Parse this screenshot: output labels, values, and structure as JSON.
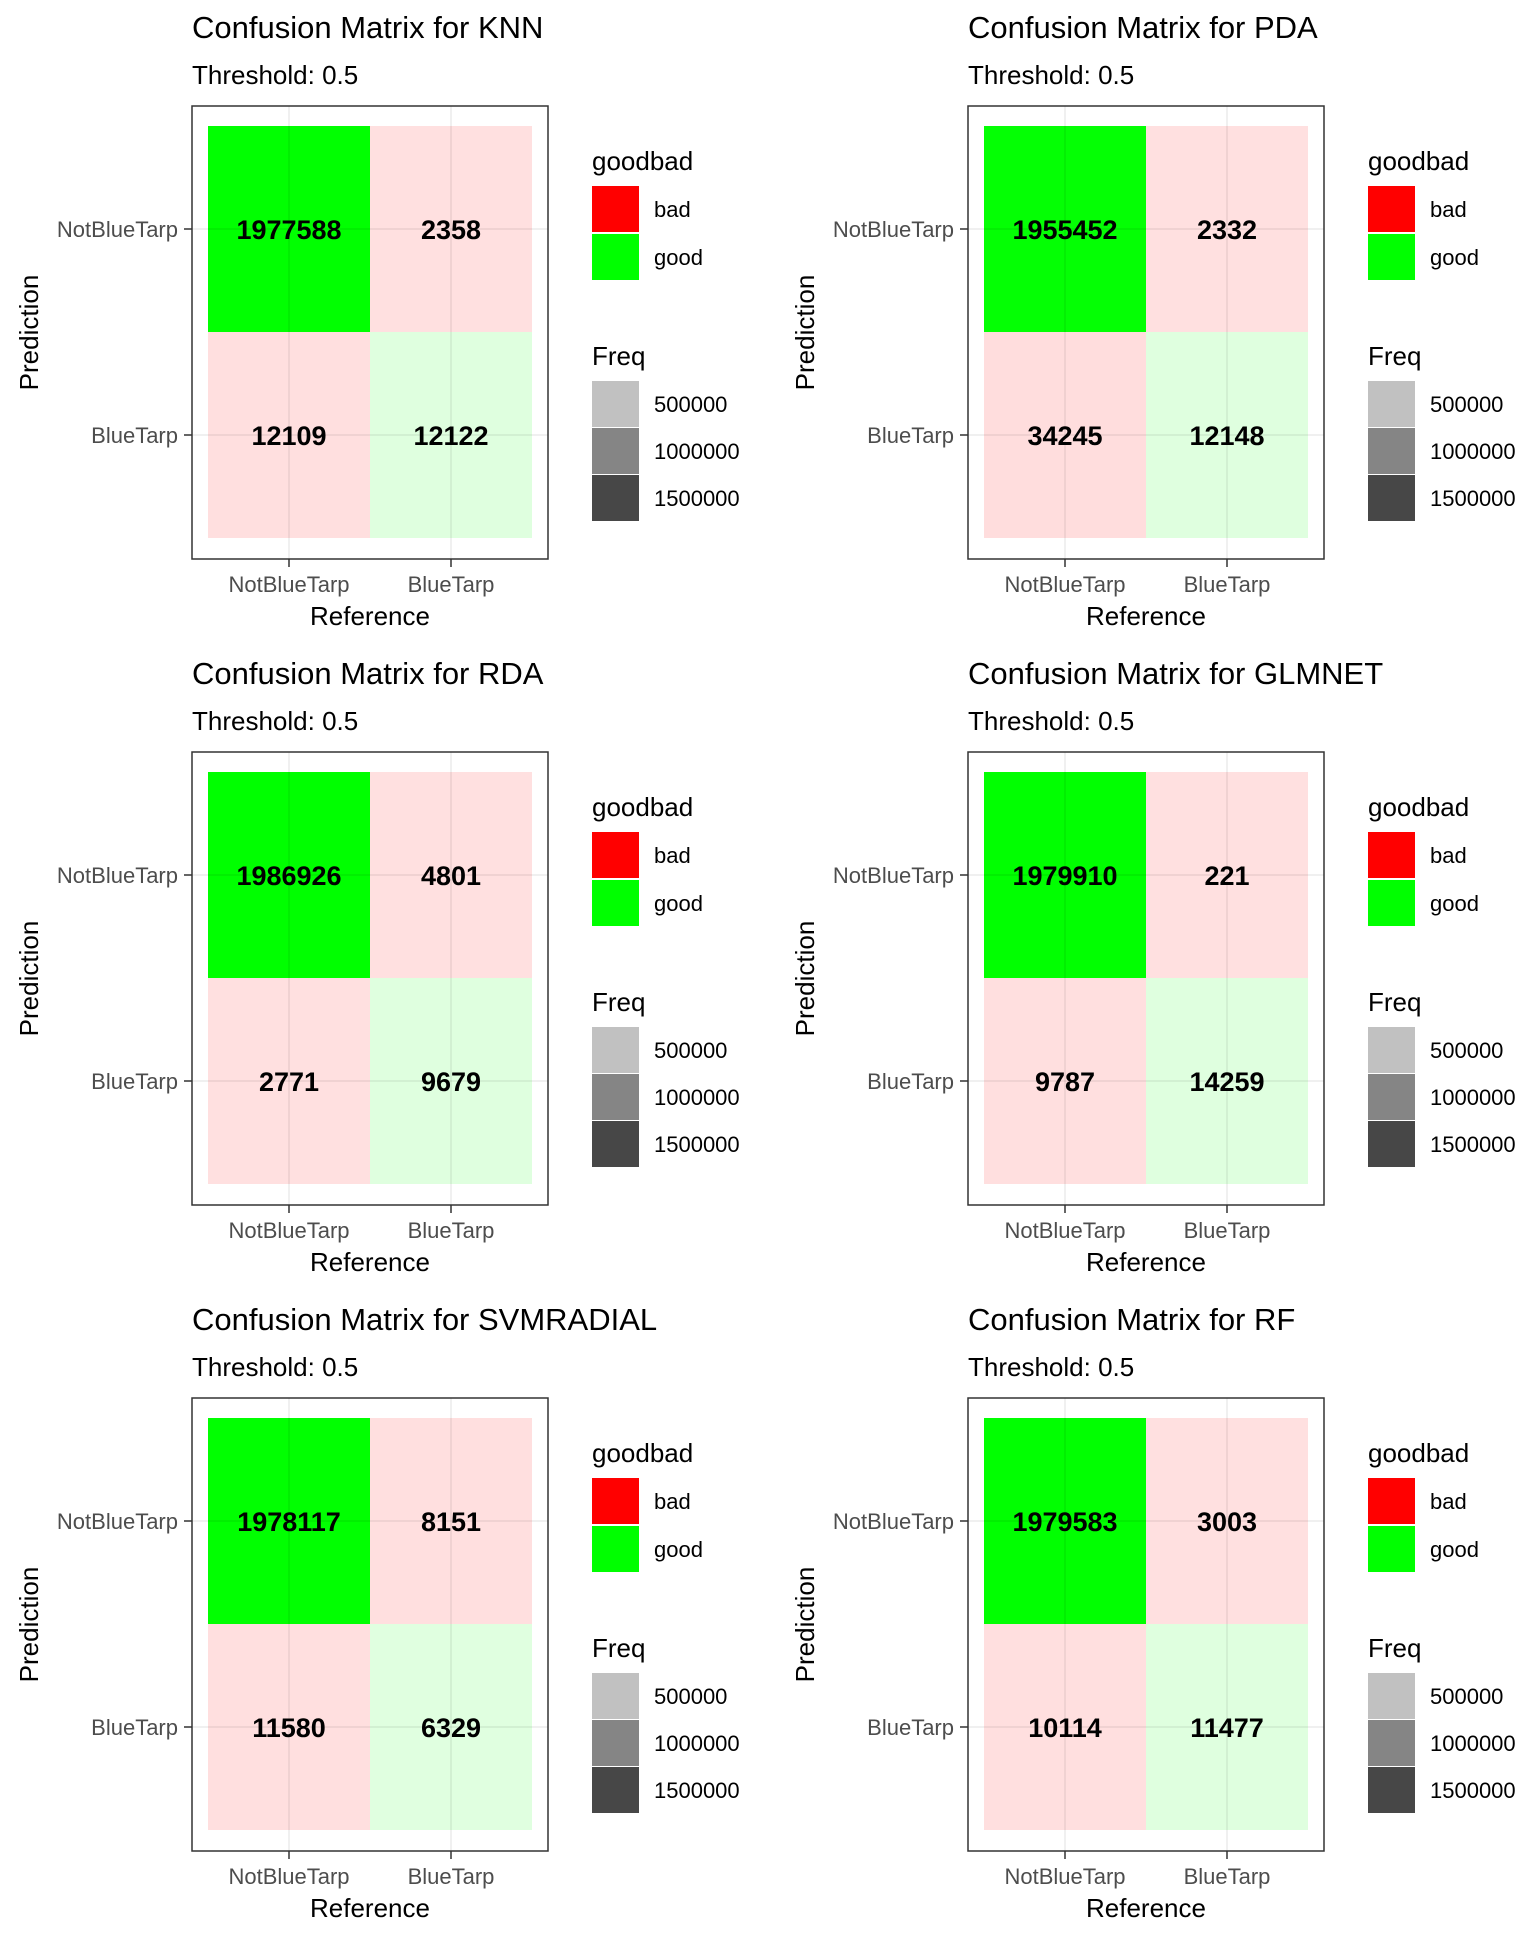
{
  "legend": {
    "fill_title": "goodbad",
    "fill_items": [
      {
        "label": "bad",
        "color": "#FF0000"
      },
      {
        "label": "good",
        "color": "#00FF00"
      }
    ],
    "alpha_title": "Freq",
    "alpha_items": [
      "500000",
      "1000000",
      "1500000"
    ]
  },
  "chart_data": [
    {
      "type": "heatmap",
      "title": "Confusion Matrix for KNN",
      "subtitle": "Threshold: 0.5",
      "xlabel": "Reference",
      "ylabel": "Prediction",
      "x_categories": [
        "NotBlueTarp",
        "BlueTarp"
      ],
      "y_categories": [
        "NotBlueTarp",
        "BlueTarp"
      ],
      "cells": [
        {
          "reference": "NotBlueTarp",
          "prediction": "NotBlueTarp",
          "freq": 1977588,
          "goodbad": "good"
        },
        {
          "reference": "BlueTarp",
          "prediction": "NotBlueTarp",
          "freq": 2358,
          "goodbad": "bad"
        },
        {
          "reference": "NotBlueTarp",
          "prediction": "BlueTarp",
          "freq": 12109,
          "goodbad": "bad"
        },
        {
          "reference": "BlueTarp",
          "prediction": "BlueTarp",
          "freq": 12122,
          "goodbad": "good"
        }
      ]
    },
    {
      "type": "heatmap",
      "title": "Confusion Matrix for PDA",
      "subtitle": "Threshold: 0.5",
      "xlabel": "Reference",
      "ylabel": "Prediction",
      "x_categories": [
        "NotBlueTarp",
        "BlueTarp"
      ],
      "y_categories": [
        "NotBlueTarp",
        "BlueTarp"
      ],
      "cells": [
        {
          "reference": "NotBlueTarp",
          "prediction": "NotBlueTarp",
          "freq": 1955452,
          "goodbad": "good"
        },
        {
          "reference": "BlueTarp",
          "prediction": "NotBlueTarp",
          "freq": 2332,
          "goodbad": "bad"
        },
        {
          "reference": "NotBlueTarp",
          "prediction": "BlueTarp",
          "freq": 34245,
          "goodbad": "bad"
        },
        {
          "reference": "BlueTarp",
          "prediction": "BlueTarp",
          "freq": 12148,
          "goodbad": "good"
        }
      ]
    },
    {
      "type": "heatmap",
      "title": "Confusion Matrix for RDA",
      "subtitle": "Threshold: 0.5",
      "xlabel": "Reference",
      "ylabel": "Prediction",
      "x_categories": [
        "NotBlueTarp",
        "BlueTarp"
      ],
      "y_categories": [
        "NotBlueTarp",
        "BlueTarp"
      ],
      "cells": [
        {
          "reference": "NotBlueTarp",
          "prediction": "NotBlueTarp",
          "freq": 1986926,
          "goodbad": "good"
        },
        {
          "reference": "BlueTarp",
          "prediction": "NotBlueTarp",
          "freq": 4801,
          "goodbad": "bad"
        },
        {
          "reference": "NotBlueTarp",
          "prediction": "BlueTarp",
          "freq": 2771,
          "goodbad": "bad"
        },
        {
          "reference": "BlueTarp",
          "prediction": "BlueTarp",
          "freq": 9679,
          "goodbad": "good"
        }
      ]
    },
    {
      "type": "heatmap",
      "title": "Confusion Matrix for GLMNET",
      "subtitle": "Threshold: 0.5",
      "xlabel": "Reference",
      "ylabel": "Prediction",
      "x_categories": [
        "NotBlueTarp",
        "BlueTarp"
      ],
      "y_categories": [
        "NotBlueTarp",
        "BlueTarp"
      ],
      "cells": [
        {
          "reference": "NotBlueTarp",
          "prediction": "NotBlueTarp",
          "freq": 1979910,
          "goodbad": "good"
        },
        {
          "reference": "BlueTarp",
          "prediction": "NotBlueTarp",
          "freq": 221,
          "goodbad": "bad"
        },
        {
          "reference": "NotBlueTarp",
          "prediction": "BlueTarp",
          "freq": 9787,
          "goodbad": "bad"
        },
        {
          "reference": "BlueTarp",
          "prediction": "BlueTarp",
          "freq": 14259,
          "goodbad": "good"
        }
      ]
    },
    {
      "type": "heatmap",
      "title": "Confusion Matrix for SVMRADIAL",
      "subtitle": "Threshold: 0.5",
      "xlabel": "Reference",
      "ylabel": "Prediction",
      "x_categories": [
        "NotBlueTarp",
        "BlueTarp"
      ],
      "y_categories": [
        "NotBlueTarp",
        "BlueTarp"
      ],
      "cells": [
        {
          "reference": "NotBlueTarp",
          "prediction": "NotBlueTarp",
          "freq": 1978117,
          "goodbad": "good"
        },
        {
          "reference": "BlueTarp",
          "prediction": "NotBlueTarp",
          "freq": 8151,
          "goodbad": "bad"
        },
        {
          "reference": "NotBlueTarp",
          "prediction": "BlueTarp",
          "freq": 11580,
          "goodbad": "bad"
        },
        {
          "reference": "BlueTarp",
          "prediction": "BlueTarp",
          "freq": 6329,
          "goodbad": "good"
        }
      ]
    },
    {
      "type": "heatmap",
      "title": "Confusion Matrix for RF",
      "subtitle": "Threshold: 0.5",
      "xlabel": "Reference",
      "ylabel": "Prediction",
      "x_categories": [
        "NotBlueTarp",
        "BlueTarp"
      ],
      "y_categories": [
        "NotBlueTarp",
        "BlueTarp"
      ],
      "cells": [
        {
          "reference": "NotBlueTarp",
          "prediction": "NotBlueTarp",
          "freq": 1979583,
          "goodbad": "good"
        },
        {
          "reference": "BlueTarp",
          "prediction": "NotBlueTarp",
          "freq": 3003,
          "goodbad": "bad"
        },
        {
          "reference": "NotBlueTarp",
          "prediction": "BlueTarp",
          "freq": 10114,
          "goodbad": "bad"
        },
        {
          "reference": "BlueTarp",
          "prediction": "BlueTarp",
          "freq": 11477,
          "goodbad": "good"
        }
      ]
    }
  ]
}
